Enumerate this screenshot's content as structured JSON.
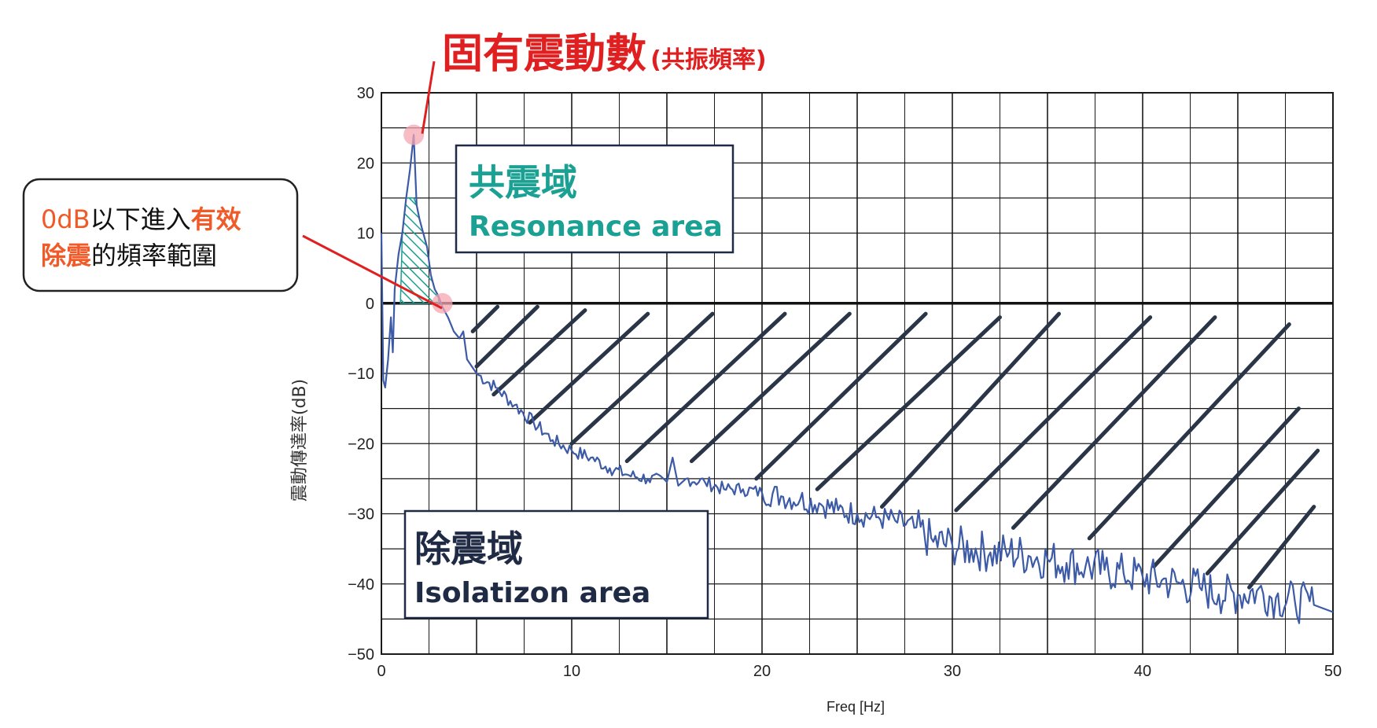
{
  "chart_data": {
    "type": "line",
    "title": "固有震動數",
    "title_suffix": "(共振頻率)",
    "xlabel": "Freq [Hz]",
    "ylabel": "震動傳達率(dB)",
    "xlim": [
      0,
      50
    ],
    "ylim": [
      -50,
      30
    ],
    "x_ticks": [
      "0",
      "10",
      "20",
      "30",
      "40",
      "50"
    ],
    "y_ticks": [
      "30",
      "20",
      "10",
      "0",
      "−10",
      "−20",
      "−30",
      "−40",
      "−50"
    ],
    "grid": true,
    "series": [
      {
        "color": "#3c5aa6",
        "points": [
          [
            0.0,
            10
          ],
          [
            0.1,
            -11
          ],
          [
            0.2,
            -12
          ],
          [
            0.35,
            -8
          ],
          [
            0.5,
            -2
          ],
          [
            0.6,
            -7
          ],
          [
            0.7,
            2
          ],
          [
            0.9,
            7
          ],
          [
            1.1,
            10
          ],
          [
            1.3,
            15
          ],
          [
            1.5,
            19
          ],
          [
            1.7,
            24
          ],
          [
            1.85,
            14
          ],
          [
            2.0,
            12
          ],
          [
            2.2,
            10
          ],
          [
            2.4,
            8
          ],
          [
            2.6,
            4
          ],
          [
            2.8,
            2
          ],
          [
            3.0,
            1
          ],
          [
            3.2,
            -0.5
          ],
          [
            3.5,
            -2
          ],
          [
            3.8,
            -4
          ],
          [
            4.1,
            -5
          ],
          [
            4.3,
            -4
          ],
          [
            4.5,
            -8
          ],
          [
            5.0,
            -10
          ],
          [
            6,
            -12
          ],
          [
            7,
            -14.5
          ],
          [
            8,
            -17
          ],
          [
            9,
            -19.5
          ],
          [
            10,
            -21
          ],
          [
            11,
            -22
          ],
          [
            12,
            -23.5
          ],
          [
            13,
            -24.5
          ],
          [
            14,
            -25
          ],
          [
            15,
            -25.5
          ],
          [
            15.3,
            -22
          ],
          [
            15.6,
            -26
          ],
          [
            16,
            -25
          ],
          [
            17,
            -25.5
          ],
          [
            18,
            -26.5
          ],
          [
            19,
            -26.5
          ],
          [
            20,
            -27
          ],
          [
            21,
            -27.5
          ],
          [
            22,
            -28
          ],
          [
            23,
            -28.5
          ],
          [
            24,
            -29.5
          ],
          [
            25,
            -30
          ],
          [
            26,
            -30.5
          ],
          [
            27,
            -31
          ],
          [
            28,
            -32
          ],
          [
            29,
            -34
          ],
          [
            30,
            -34.5
          ],
          [
            31,
            -35
          ],
          [
            32,
            -35.5
          ],
          [
            33,
            -35.5
          ],
          [
            34,
            -36
          ],
          [
            35,
            -36.5
          ],
          [
            36,
            -37
          ],
          [
            37,
            -37.5
          ],
          [
            38,
            -38
          ],
          [
            39,
            -38.5
          ],
          [
            40,
            -39
          ],
          [
            41,
            -39.5
          ],
          [
            42,
            -40
          ],
          [
            43,
            -40.5
          ],
          [
            44,
            -41.5
          ],
          [
            45,
            -41.5
          ],
          [
            46,
            -41
          ],
          [
            47,
            -42
          ],
          [
            48,
            -42.5
          ],
          [
            49,
            -43
          ],
          [
            49.5,
            -43.5
          ],
          [
            50,
            -44
          ]
        ]
      }
    ],
    "resonance_frequency_hz": 1.7,
    "resonance_peak_db": 24,
    "zero_db_crossing_hz": 3.2,
    "resonance_hatch_region_hz": [
      1.0,
      3.0
    ]
  },
  "annotations": {
    "resonance_box": {
      "title": "共震域",
      "subtitle": "Resonance area"
    },
    "isolation_box": {
      "title": "除震域",
      "subtitle": "Isolatizon area"
    },
    "callout": {
      "part1": "0dB",
      "part2": "以下進入",
      "part3": "有效",
      "part4": "除震",
      "part5": "的頻率範圍"
    }
  },
  "colors": {
    "title_red": "#e02020",
    "callout_orange": "#f05a28",
    "teal": "#1aa193",
    "navy": "#1f2a44",
    "line_blue": "#3c5aa6",
    "marker_pink": "#f4a6b0",
    "grid": "#1a1a1a",
    "hatch_dark": "#2a3548"
  }
}
